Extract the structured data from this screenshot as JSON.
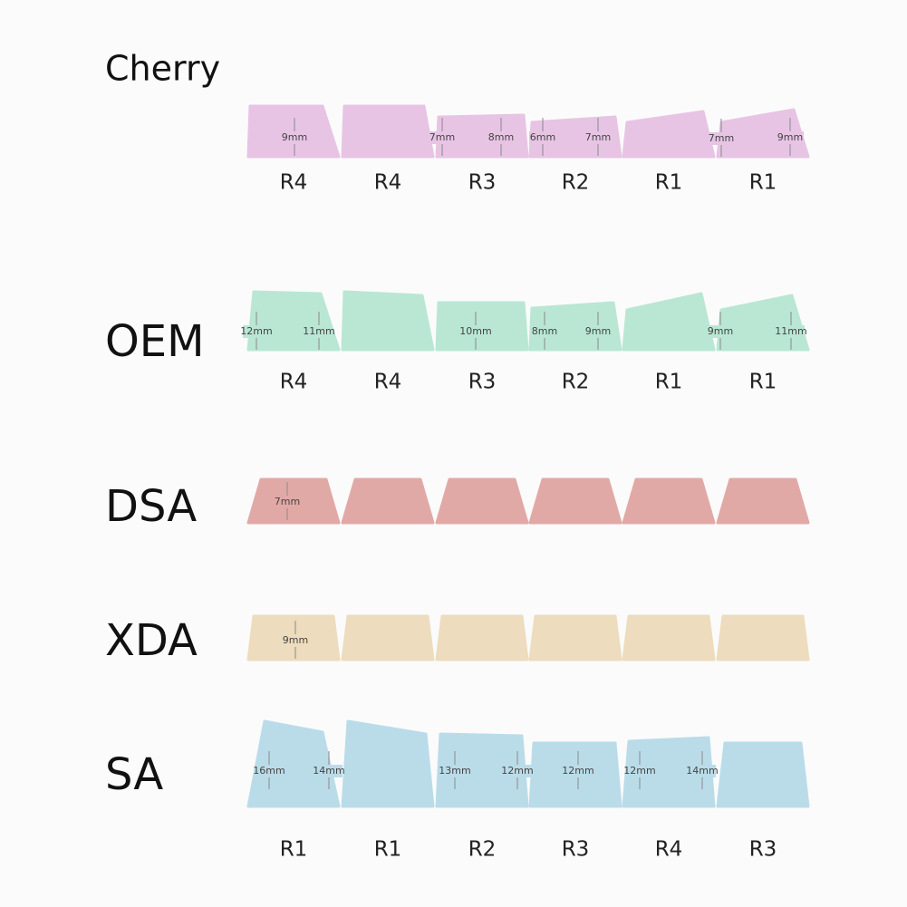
{
  "profiles": [
    {
      "name": "Cherry",
      "rows": [
        "R4",
        "R4",
        "R3",
        "R2",
        "R1",
        "R1"
      ],
      "measurements": [
        "9mm",
        "7mm",
        "8mm",
        "6mm",
        "7mm",
        "7mm",
        "9mm"
      ]
    },
    {
      "name": "OEM",
      "rows": [
        "R4",
        "R4",
        "R3",
        "R2",
        "R1",
        "R1"
      ],
      "measurements": [
        "12mm",
        "11mm",
        "10mm",
        "8mm",
        "9mm",
        "9mm",
        "11mm"
      ]
    },
    {
      "name": "DSA",
      "measurements": [
        "7mm"
      ]
    },
    {
      "name": "XDA",
      "measurements": [
        "9mm"
      ]
    },
    {
      "name": "SA",
      "rows": [
        "R1",
        "R1",
        "R2",
        "R3",
        "R4",
        "R3"
      ],
      "measurements": [
        "16mm",
        "14mm",
        "13mm",
        "12mm",
        "12mm",
        "12mm",
        "14mm"
      ]
    }
  ]
}
